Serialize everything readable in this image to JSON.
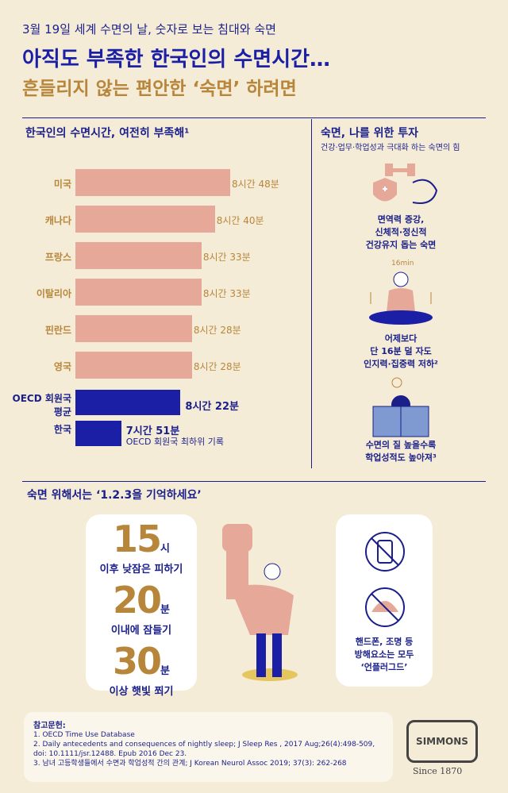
{
  "header": {
    "kicker": "3월 19일 세계 수면의 날, 숫자로 보는 침대와 숙면",
    "title": "아직도 부족한 한국인의 수면시간…",
    "subtitle": "흔들리지 않는 편안한 ‘숙면’ 하려면"
  },
  "chart_data": {
    "type": "bar",
    "orientation": "horizontal",
    "title": "한국인의 수면시간, 여전히 부족해¹",
    "categories": [
      "미국",
      "캐나다",
      "프랑스",
      "이탈리아",
      "핀란드",
      "영국",
      "OECD 회원국 평균",
      "한국"
    ],
    "values": [
      528,
      520,
      513,
      513,
      508,
      508,
      502,
      471
    ],
    "value_labels": [
      "8시간 48분",
      "8시간 40분",
      "8시간 33분",
      "8시간 33분",
      "8시간 28분",
      "8시간 28분",
      "8시간 22분",
      "7시간 51분"
    ],
    "colors": [
      "#e6a899",
      "#e6a899",
      "#e6a899",
      "#e6a899",
      "#e6a899",
      "#e6a899",
      "#1a1fa6",
      "#1a1fa6"
    ],
    "xlim": [
      447,
      528
    ],
    "annotation": "OECD 회원국 최하위 기록"
  },
  "investment": {
    "title": "숙면, 나를 위한 투자",
    "subtitle": "건강·업무·학업성과 극대화 하는 숙면의 힘",
    "items": [
      {
        "text": "면역력 증강,\n신체적·정신적\n건강유지 돕는 숙면"
      },
      {
        "icon_label": "16min",
        "text": "어제보다\n단 16분 덜 자도\n인지력·집중력 저하²"
      },
      {
        "text": "수면의 질 높을수록\n학업성적도 높아져³"
      }
    ]
  },
  "tips": {
    "title": "숙면 위해서는 ‘1.2.3을 기억하세요’",
    "rules": [
      {
        "number": 15,
        "unit": "시",
        "text": "이후 낮잠은 피하기"
      },
      {
        "number": 20,
        "unit": "분",
        "text": "이내에 잠들기"
      },
      {
        "number": 30,
        "unit": "분",
        "text": "이상 햇빛 쬐기"
      }
    ],
    "unplug": "핸드폰, 조명 등\n방해요소는 모두\n‘언플러그드’"
  },
  "references": {
    "title": "참고문헌:",
    "items": [
      "1. OECD Time Use Database",
      "2. Daily antecedents and consequences of nightly sleep; J Sleep Res , 2017 Aug;26(4):498-509, doi: 10.1111/jsr.12488. Epub 2016 Dec 23.",
      "3. 남녀 고등학생들에서 수면과 학업성적 간의 관계; J Korean Neurol Assoc 2019; 37(3): 262-268"
    ]
  },
  "brand": {
    "name": "SIMMONS",
    "since": "Since 1870"
  }
}
